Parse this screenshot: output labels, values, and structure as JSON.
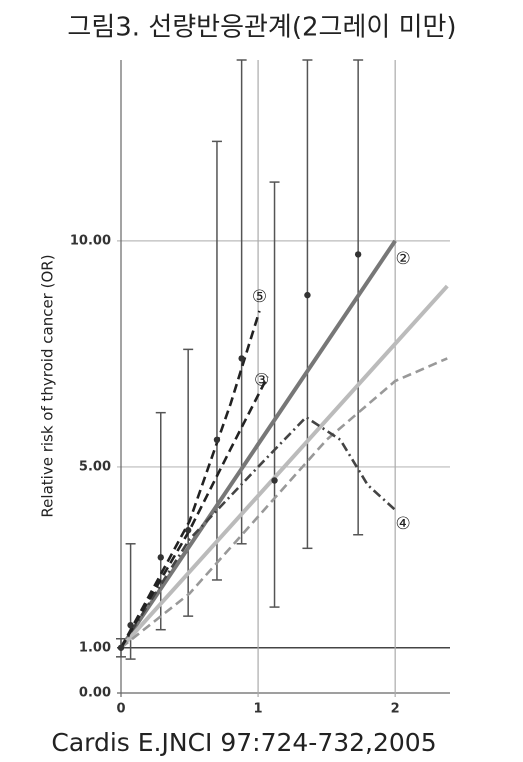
{
  "chart_data": {
    "type": "line",
    "title": "그림3. 선량반응관계(2그레이 미만)",
    "y_label": "Relative risk of thyroid cancer (OR)",
    "source": "Cardis E.JNCI 97:724-732,2005",
    "xlim": [
      0,
      2.4
    ],
    "ylim": [
      0,
      14
    ],
    "xticks": [
      0,
      1,
      2
    ],
    "yticks": [
      {
        "value": 0,
        "label": "0.00"
      },
      {
        "value": 1,
        "label": "1.00"
      },
      {
        "value": 5,
        "label": "5.00"
      },
      {
        "value": 10,
        "label": "10.00"
      }
    ],
    "series": [
      {
        "name": "②",
        "color": "#777777",
        "style": "solid",
        "x": [
          0,
          2.0
        ],
        "values": [
          1,
          10
        ]
      },
      {
        "color": "#bbbbbb",
        "style": "solid",
        "x": [
          0,
          2.38
        ],
        "values": [
          1,
          9.0
        ]
      },
      {
        "color": "#999999",
        "style": "dashed",
        "x": [
          0,
          0.5,
          1.0,
          1.5,
          2.0,
          2.38
        ],
        "values": [
          1,
          2.2,
          3.9,
          5.6,
          6.9,
          7.4
        ]
      },
      {
        "name": "④",
        "color": "#444444",
        "style": "dashdot",
        "x": [
          0,
          0.5,
          1.0,
          1.35,
          1.6,
          1.8,
          2.0
        ],
        "values": [
          1,
          3.4,
          5.0,
          6.1,
          5.6,
          4.6,
          4.05
        ]
      },
      {
        "name": "③",
        "color": "#222222",
        "style": "dashed",
        "x": [
          0,
          0.5,
          0.8,
          1.07
        ],
        "values": [
          1,
          3.6,
          5.4,
          7.0
        ]
      },
      {
        "name": "⑤",
        "color": "#222222",
        "style": "dashed",
        "x": [
          0,
          0.5,
          0.8,
          1.01
        ],
        "values": [
          1,
          3.8,
          6.4,
          8.45
        ]
      }
    ],
    "points": {
      "color": "#333333",
      "x": [
        0,
        0.07,
        0.29,
        0.49,
        0.7,
        0.88,
        1.12,
        1.36,
        1.73
      ],
      "values": [
        1.0,
        1.5,
        3.0,
        3.6,
        5.6,
        7.4,
        4.7,
        8.8,
        9.7
      ],
      "lower": [
        0.8,
        0.75,
        1.4,
        1.7,
        2.5,
        3.3,
        1.9,
        3.2,
        3.5
      ],
      "upper": [
        1.2,
        3.3,
        6.2,
        7.6,
        12.2,
        14,
        11.3,
        14,
        14
      ]
    },
    "grid": true
  }
}
